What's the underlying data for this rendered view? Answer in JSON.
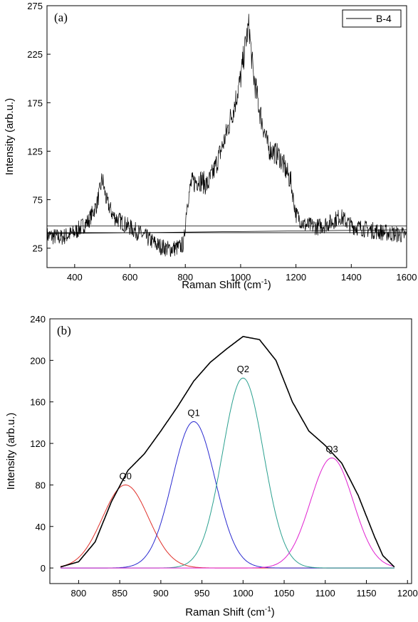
{
  "chart_data": [
    {
      "type": "line",
      "panel_label": "(a)",
      "xlabel": "Raman Shift (cm",
      "xlabel_sup": "-1",
      "xlabel_tail": ")",
      "ylabel": "Intensity (arb.u.)",
      "xlim": [
        300,
        1600
      ],
      "ylim": [
        5,
        275
      ],
      "xticks": [
        400,
        600,
        800,
        1000,
        1200,
        1400,
        1600
      ],
      "yticks": [
        25,
        75,
        125,
        175,
        225,
        275
      ],
      "grid": false,
      "legend_position": "top-right",
      "series": [
        {
          "name": "B-4",
          "color": "#000000",
          "x": [
            300,
            350,
            400,
            450,
            480,
            500,
            515,
            540,
            580,
            620,
            660,
            700,
            740,
            780,
            795,
            805,
            820,
            850,
            880,
            900,
            940,
            980,
            1000,
            1020,
            1030,
            1045,
            1070,
            1100,
            1140,
            1180,
            1200,
            1230,
            1280,
            1330,
            1360,
            1400,
            1450,
            1500,
            1550,
            1600
          ],
          "y": [
            38,
            36,
            41,
            53,
            70,
            96,
            74,
            58,
            50,
            43,
            36,
            28,
            24,
            26,
            30,
            68,
            91,
            96,
            90,
            102,
            135,
            175,
            200,
            240,
            255,
            205,
            165,
            128,
            120,
            95,
            60,
            49,
            47,
            52,
            58,
            48,
            45,
            42,
            40,
            38
          ]
        }
      ],
      "baseline_lines": [
        {
          "x": [
            300,
            1600
          ],
          "y": [
            48,
            48
          ]
        },
        {
          "x": [
            300,
            1600
          ],
          "y": [
            40,
            44
          ]
        },
        {
          "x": [
            300,
            1600
          ],
          "y": [
            41,
            41
          ]
        }
      ]
    },
    {
      "type": "line",
      "panel_label": "(b)",
      "xlabel": "Raman Shift (cm",
      "xlabel_sup": "-1",
      "xlabel_tail": ")",
      "ylabel": "Intensity (arb.u.)",
      "xlim": [
        765,
        1205
      ],
      "ylim": [
        -15,
        240
      ],
      "xticks": [
        800,
        850,
        900,
        950,
        1000,
        1050,
        1100,
        1150,
        1200
      ],
      "yticks": [
        0,
        40,
        80,
        120,
        160,
        200,
        240
      ],
      "grid": false,
      "x_range": [
        778,
        1184
      ],
      "peaks": [
        {
          "name": "Q0",
          "center": 857,
          "amplitude": 80,
          "sigma": 28,
          "color": "#e0302a"
        },
        {
          "name": "Q1",
          "center": 940,
          "amplitude": 141,
          "sigma": 26,
          "color": "#2a2ad0"
        },
        {
          "name": "Q2",
          "center": 1000,
          "amplitude": 183,
          "sigma": 25,
          "color": "#2aa08f"
        },
        {
          "name": "Q3",
          "center": 1108,
          "amplitude": 106,
          "sigma": 26,
          "color": "#e020d0"
        }
      ],
      "envelope": {
        "color": "#000000",
        "x": [
          778,
          800,
          820,
          840,
          860,
          880,
          900,
          920,
          940,
          960,
          980,
          1000,
          1020,
          1040,
          1060,
          1080,
          1100,
          1120,
          1140,
          1160,
          1170,
          1184
        ],
        "y": [
          1,
          6,
          25,
          64,
          94,
          110,
          132,
          155,
          180,
          198,
          211,
          223,
          220,
          200,
          160,
          132,
          118,
          101,
          70,
          30,
          12,
          1
        ]
      }
    }
  ]
}
